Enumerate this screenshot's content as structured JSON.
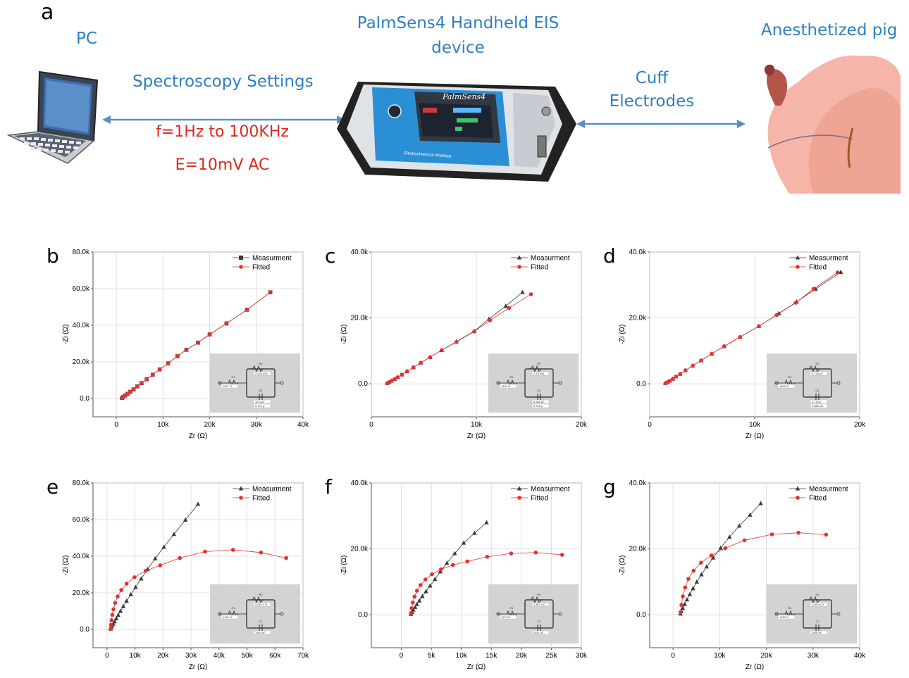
{
  "panel_a": {
    "letter": "a",
    "pc_label": "PC",
    "device_label_line1": "PalmSens4 Handheld EIS",
    "device_label_line2": "device",
    "pig_label": "Anesthetized pig",
    "settings_label": "Spectroscopy Settings",
    "freq_label": "f=1Hz to 100KHz",
    "amp_label": "E=10mV AC",
    "cuff_line1": "Cuff",
    "cuff_line2": "Electrodes",
    "device_brand": "PalmSens4",
    "device_bottom": "Electrochemical Interface"
  },
  "colors": {
    "blue_label": "#2e7fbf",
    "red_label": "#e0281e",
    "measured": "#3a3a3a",
    "fitted": "#e53030",
    "device_blue": "#2b8fd6"
  },
  "chart_data": [
    {
      "letter": "b",
      "type": "scatter",
      "marker": "square",
      "xlabel": "Zr (Ω)",
      "ylabel": "-Zi (Ω)",
      "xlim": [
        -5000,
        40000
      ],
      "ylim": [
        -10000,
        80000
      ],
      "xticks": [
        0,
        10000,
        20000,
        30000,
        40000
      ],
      "xtick_labels": [
        "0",
        "10k",
        "20k",
        "30k",
        "40k"
      ],
      "yticks": [
        0,
        20000,
        40000,
        60000,
        80000
      ],
      "ytick_labels": [
        "0.0",
        "20.0k",
        "40.0k",
        "60.0k",
        "80.0k"
      ],
      "legend": [
        "Measurment",
        "Fitted"
      ],
      "series": [
        {
          "name": "Measurment",
          "x": [
            1200,
            1500,
            1900,
            2400,
            3000,
            3700,
            4500,
            5400,
            6500,
            7800,
            9300,
            11100,
            13100,
            15000,
            17500,
            20000,
            23600,
            28000,
            33000
          ],
          "y": [
            300,
            900,
            1700,
            2600,
            3700,
            5000,
            6600,
            8400,
            10500,
            13000,
            15900,
            19200,
            23100,
            26600,
            30500,
            35000,
            41000,
            48500,
            58000
          ]
        },
        {
          "name": "Fitted",
          "x": [
            1200,
            1500,
            1900,
            2400,
            3000,
            3700,
            4500,
            5400,
            6500,
            7800,
            9300,
            11100,
            13100,
            15000,
            17500,
            20000,
            23600,
            28000,
            33000
          ],
          "y": [
            300,
            900,
            1700,
            2600,
            3700,
            5000,
            6600,
            8400,
            10500,
            13000,
            15900,
            19200,
            23100,
            26600,
            30500,
            35000,
            41000,
            48500,
            58000
          ]
        }
      ],
      "circuit": [
        "R1",
        "R2",
        "Q1",
        "1197 Ω",
        "2.024 mΩ",
        "10.0 μF",
        "0.721 p"
      ]
    },
    {
      "letter": "c",
      "type": "scatter",
      "marker": "triangle",
      "xlabel": "Zr (Ω)",
      "ylabel": "-Zi (Ω)",
      "xlim": [
        0,
        20000
      ],
      "ylim": [
        -10000,
        40000
      ],
      "xticks": [
        0,
        10000,
        20000
      ],
      "xtick_labels": [
        "0",
        "10k",
        "20k"
      ],
      "yticks": [
        0,
        20000,
        40000
      ],
      "ytick_labels": [
        "0.0",
        "20.0k",
        "40.0k"
      ],
      "legend": [
        "Measurment",
        "Fitted"
      ],
      "series": [
        {
          "name": "Measurment",
          "x": [
            1500,
            1700,
            1900,
            2200,
            2500,
            2900,
            3400,
            4000,
            4700,
            5600,
            6700,
            8100,
            9800,
            11200,
            12800,
            14400
          ],
          "y": [
            200,
            500,
            900,
            1400,
            2000,
            2800,
            3800,
            5000,
            6400,
            8100,
            10200,
            12800,
            16000,
            19700,
            23600,
            27800
          ]
        },
        {
          "name": "Fitted",
          "x": [
            1500,
            1700,
            1900,
            2200,
            2500,
            2900,
            3400,
            4000,
            4700,
            5600,
            6700,
            8100,
            9800,
            11300,
            13100,
            15200
          ],
          "y": [
            200,
            500,
            900,
            1400,
            2000,
            2800,
            3800,
            5000,
            6400,
            8100,
            10200,
            12700,
            15900,
            19300,
            23000,
            27200
          ]
        }
      ],
      "circuit": [
        "R1",
        "R2",
        "Q1",
        "1484 Ω",
        "2.78 mΩ",
        "6.582 μF",
        "0.752 p"
      ]
    },
    {
      "letter": "d",
      "type": "scatter",
      "marker": "triangle",
      "xlabel": "Zr (Ω)",
      "ylabel": "-Zi (Ω)",
      "xlim": [
        0,
        20000
      ],
      "ylim": [
        -10000,
        40000
      ],
      "xticks": [
        0,
        10000,
        20000
      ],
      "xtick_labels": [
        "0",
        "10k",
        "20k"
      ],
      "yticks": [
        0,
        20000,
        40000
      ],
      "ytick_labels": [
        "0.0",
        "20.0k",
        "40.0k"
      ],
      "legend": [
        "Measurment",
        "Fitted"
      ],
      "series": [
        {
          "name": "Measurment",
          "x": [
            1500,
            1700,
            1900,
            2200,
            2500,
            2900,
            3400,
            4100,
            4900,
            5900,
            7100,
            8600,
            10400,
            12300,
            14000,
            15800,
            18200
          ],
          "y": [
            200,
            500,
            900,
            1500,
            2200,
            3000,
            4100,
            5500,
            7100,
            9100,
            11400,
            14200,
            17500,
            21400,
            24900,
            28800,
            33900
          ]
        },
        {
          "name": "Fitted",
          "x": [
            1500,
            1700,
            1900,
            2200,
            2500,
            2900,
            3400,
            4100,
            4900,
            5900,
            7100,
            8600,
            10400,
            12100,
            13900,
            15600,
            17900
          ],
          "y": [
            200,
            500,
            900,
            1500,
            2200,
            3000,
            4100,
            5500,
            7100,
            9100,
            11400,
            14200,
            17500,
            20900,
            24600,
            28800,
            33800
          ]
        }
      ],
      "circuit": [
        "R1",
        "R2",
        "Q1",
        "1600 Ω",
        "6.724 μF",
        "0.715 p",
        "0.882 kΩ"
      ]
    },
    {
      "letter": "e",
      "type": "scatter",
      "marker": "triangle",
      "xlabel": "Zr (Ω)",
      "ylabel": "-Zi (Ω)",
      "xlim": [
        -5000,
        70000
      ],
      "ylim": [
        -10000,
        80000
      ],
      "xticks": [
        0,
        10000,
        20000,
        30000,
        40000,
        50000,
        60000,
        70000
      ],
      "xtick_labels": [
        "0",
        "10k",
        "20k",
        "30k",
        "40k",
        "50k",
        "60k",
        "70k"
      ],
      "yticks": [
        0,
        20000,
        40000,
        60000,
        80000
      ],
      "ytick_labels": [
        "0.0",
        "20.0k",
        "40.0k",
        "60.0k",
        "80.0k"
      ],
      "legend": [
        "Measurment",
        "Fitted"
      ],
      "series": [
        {
          "name": "Measurment",
          "x": [
            1300,
            1500,
            1800,
            2200,
            2700,
            3300,
            4000,
            4800,
            5800,
            7000,
            8500,
            10200,
            12200,
            14500,
            17200,
            20300,
            23900,
            28000,
            32500
          ],
          "y": [
            300,
            1000,
            1900,
            3000,
            4300,
            5900,
            7800,
            10000,
            12600,
            15600,
            19100,
            23100,
            27700,
            32900,
            38700,
            45000,
            52000,
            59800,
            68500
          ]
        },
        {
          "name": "Fitted",
          "x": [
            1300,
            1400,
            1600,
            1900,
            2300,
            2900,
            3800,
            5100,
            7000,
            9800,
            13800,
            19000,
            26000,
            35000,
            45000,
            55000,
            64000
          ],
          "y": [
            500,
            2500,
            5000,
            8000,
            11000,
            14500,
            18000,
            21500,
            25000,
            28500,
            32000,
            35000,
            39000,
            42500,
            43500,
            42000,
            39000
          ]
        }
      ],
      "circuit": [
        "R1",
        "R2",
        "C1",
        "1342 Ω",
        "5.0E+4 Ω",
        "1344 nF"
      ]
    },
    {
      "letter": "f",
      "type": "scatter",
      "marker": "triangle",
      "xlabel": "Zr (Ω)",
      "ylabel": "-Zi (Ω)",
      "xlim": [
        -5000,
        30000
      ],
      "ylim": [
        -10000,
        40000
      ],
      "xticks": [
        0,
        5000,
        10000,
        15000,
        20000,
        25000,
        30000
      ],
      "xtick_labels": [
        "0",
        "5k",
        "10k",
        "15k",
        "20k",
        "25k",
        "30k"
      ],
      "yticks": [
        0,
        20000,
        40000
      ],
      "ytick_labels": [
        "0.0",
        "20.0k",
        "40.0k"
      ],
      "legend": [
        "Measurment",
        "Fitted"
      ],
      "series": [
        {
          "name": "Measurment",
          "x": [
            1600,
            1800,
            2000,
            2300,
            2600,
            3000,
            3500,
            4100,
            4800,
            5600,
            6500,
            7600,
            8900,
            10400,
            12200,
            14200
          ],
          "y": [
            200,
            800,
            1500,
            2300,
            3200,
            4300,
            5600,
            7100,
            8800,
            10800,
            13100,
            15700,
            18600,
            21800,
            24800,
            28000
          ]
        },
        {
          "name": "Fitted",
          "x": [
            1600,
            1700,
            1900,
            2200,
            2600,
            3200,
            4000,
            5100,
            6600,
            8600,
            11000,
            14300,
            18300,
            22400,
            26800
          ],
          "y": [
            500,
            2000,
            3700,
            5500,
            7300,
            9000,
            10700,
            12300,
            13800,
            15100,
            16200,
            17600,
            18600,
            18900,
            18200
          ]
        }
      ],
      "circuit": [
        "R1",
        "R2",
        "C1",
        "1670 Ω",
        "2.8E+4 Ω",
        "5011 nF"
      ]
    },
    {
      "letter": "g",
      "type": "scatter",
      "marker": "triangle",
      "xlabel": "Zr (Ω)",
      "ylabel": "-Zi (Ω)",
      "xlim": [
        -5000,
        40000
      ],
      "ylim": [
        -10000,
        40000
      ],
      "xticks": [
        0,
        10000,
        20000,
        30000,
        40000
      ],
      "xtick_labels": [
        "0",
        "10k",
        "20k",
        "30k",
        "40k"
      ],
      "yticks": [
        0,
        20000,
        40000
      ],
      "ytick_labels": [
        "0.0",
        "20.0k",
        "40.0k"
      ],
      "legend": [
        "Measurment",
        "Fitted"
      ],
      "series": [
        {
          "name": "Measurment",
          "x": [
            1600,
            1800,
            2100,
            2500,
            3000,
            3600,
            4300,
            5100,
            6100,
            7200,
            8600,
            10200,
            12100,
            14200,
            16500,
            18800
          ],
          "y": [
            300,
            1000,
            2000,
            3200,
            4600,
            6200,
            8000,
            10000,
            12200,
            14600,
            17300,
            20300,
            23600,
            27000,
            30300,
            33800
          ]
        },
        {
          "name": "Fitted",
          "x": [
            1600,
            1800,
            2100,
            2600,
            3300,
            4400,
            6000,
            8200,
            11200,
            15300,
            21200,
            26900,
            32800
          ],
          "y": [
            800,
            3000,
            5600,
            8300,
            10900,
            13400,
            15800,
            18000,
            20200,
            22600,
            24400,
            24900,
            24300
          ]
        }
      ],
      "circuit": [
        "R1",
        "R2",
        "C1",
        "1136 Ω",
        "3.0E+4 Ω",
        "2840 nF"
      ]
    }
  ]
}
